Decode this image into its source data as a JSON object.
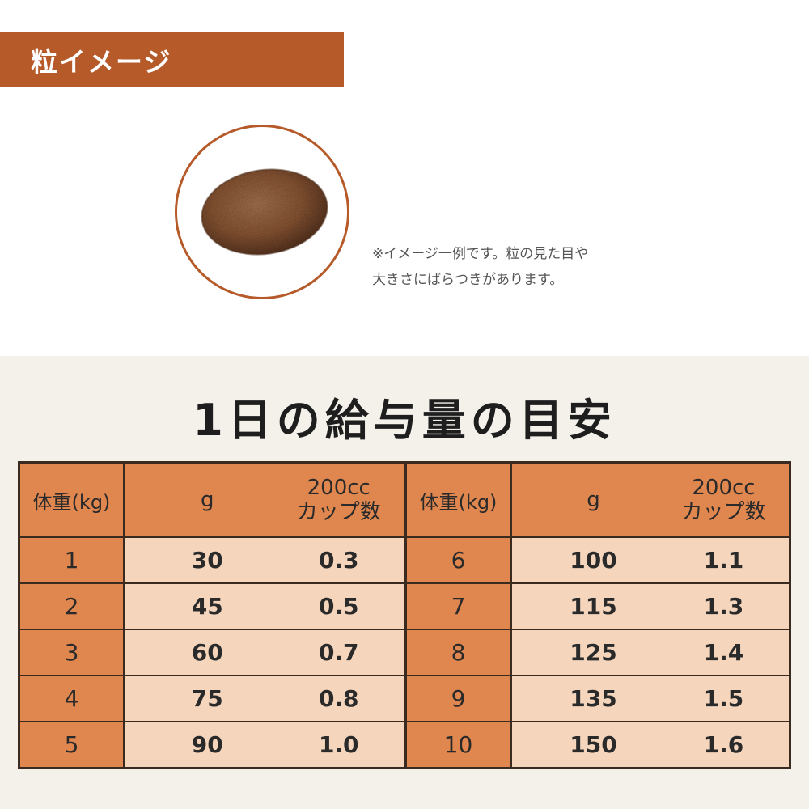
{
  "banner": {
    "title": "粒イメージ"
  },
  "note": {
    "line1": "※イメージ一例です。粒の見た目や",
    "line2": "大きさにばらつきがあります。"
  },
  "table": {
    "title": "1日の給与量の目安",
    "headers": {
      "weight": "体重(kg)",
      "grams": "g",
      "cups": "200cc\nカップ数"
    },
    "left": [
      {
        "weight": "1",
        "grams": "30",
        "cups": "0.3"
      },
      {
        "weight": "2",
        "grams": "45",
        "cups": "0.5"
      },
      {
        "weight": "3",
        "grams": "60",
        "cups": "0.7"
      },
      {
        "weight": "4",
        "grams": "75",
        "cups": "0.8"
      },
      {
        "weight": "5",
        "grams": "90",
        "cups": "1.0"
      }
    ],
    "right": [
      {
        "weight": "6",
        "grams": "100",
        "cups": "1.1"
      },
      {
        "weight": "7",
        "grams": "115",
        "cups": "1.3"
      },
      {
        "weight": "8",
        "grams": "125",
        "cups": "1.4"
      },
      {
        "weight": "9",
        "grams": "135",
        "cups": "1.5"
      },
      {
        "weight": "10",
        "grams": "150",
        "cups": "1.6"
      }
    ]
  },
  "colors": {
    "accent": "#b65a2a",
    "header_fill": "#e0874f",
    "cell_fill": "#f5d6bd"
  }
}
